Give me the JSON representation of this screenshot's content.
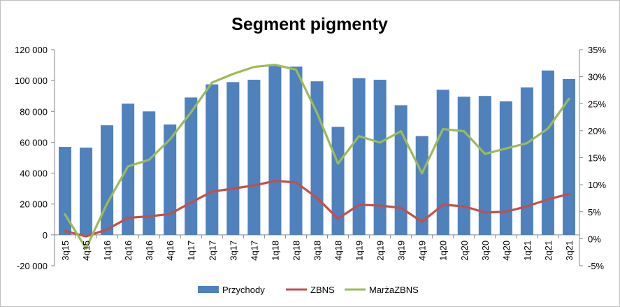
{
  "chart_data": {
    "type": "bar",
    "title": "Segment pigmenty",
    "categories": [
      "3q15",
      "4q15",
      "1q16",
      "2q16",
      "3q16",
      "4q16",
      "1q17",
      "2q17",
      "3q17",
      "4q17",
      "1q18",
      "2q18",
      "3q18",
      "4q18",
      "1q19",
      "2q19",
      "3q19",
      "4q19",
      "1q20",
      "2q20",
      "3q20",
      "4q20",
      "1q21",
      "2q21",
      "3q21"
    ],
    "series": [
      {
        "name": "Przychody",
        "type": "bar",
        "axis": "left",
        "color": "#4f81bd",
        "values": [
          57000,
          56500,
          71000,
          85000,
          80000,
          71500,
          89000,
          97500,
          99000,
          100500,
          109500,
          109000,
          99500,
          70000,
          101500,
          100500,
          84000,
          64000,
          94000,
          89500,
          90000,
          86500,
          95500,
          106500,
          101000
        ]
      },
      {
        "name": "ZBNS",
        "type": "line",
        "axis": "left",
        "color": "#c0504d",
        "values": [
          2500,
          -1000,
          3500,
          11000,
          12000,
          13500,
          21000,
          28000,
          30000,
          32000,
          35000,
          34000,
          24000,
          10500,
          19500,
          19000,
          17500,
          8500,
          19500,
          18500,
          14500,
          15000,
          18500,
          23000,
          26500
        ]
      },
      {
        "name": "MarżaZBNS",
        "type": "line",
        "axis": "right",
        "color": "#9bbb59",
        "values": [
          4.5,
          -1.8,
          6.5,
          13.4,
          14.6,
          18.4,
          23.4,
          28.9,
          30.5,
          31.8,
          32.2,
          31.3,
          23.3,
          13.9,
          19.0,
          17.8,
          19.9,
          12.1,
          20.3,
          19.9,
          15.7,
          16.7,
          17.7,
          20.4,
          25.9
        ]
      }
    ],
    "y_left": {
      "min": -20000,
      "max": 120000,
      "ticks": [
        -20000,
        0,
        20000,
        40000,
        60000,
        80000,
        100000,
        120000
      ],
      "tick_labels": [
        "-20 000",
        "0",
        "20 000",
        "40 000",
        "60 000",
        "80 000",
        "100 000",
        "120 000"
      ]
    },
    "y_right": {
      "min": -5,
      "max": 35,
      "ticks": [
        -5,
        0,
        5,
        10,
        15,
        20,
        25,
        30,
        35
      ],
      "tick_labels": [
        "-5%",
        "0%",
        "5%",
        "10%",
        "15%",
        "20%",
        "25%",
        "30%",
        "35%"
      ]
    },
    "grid": false,
    "legend_position": "bottom"
  }
}
